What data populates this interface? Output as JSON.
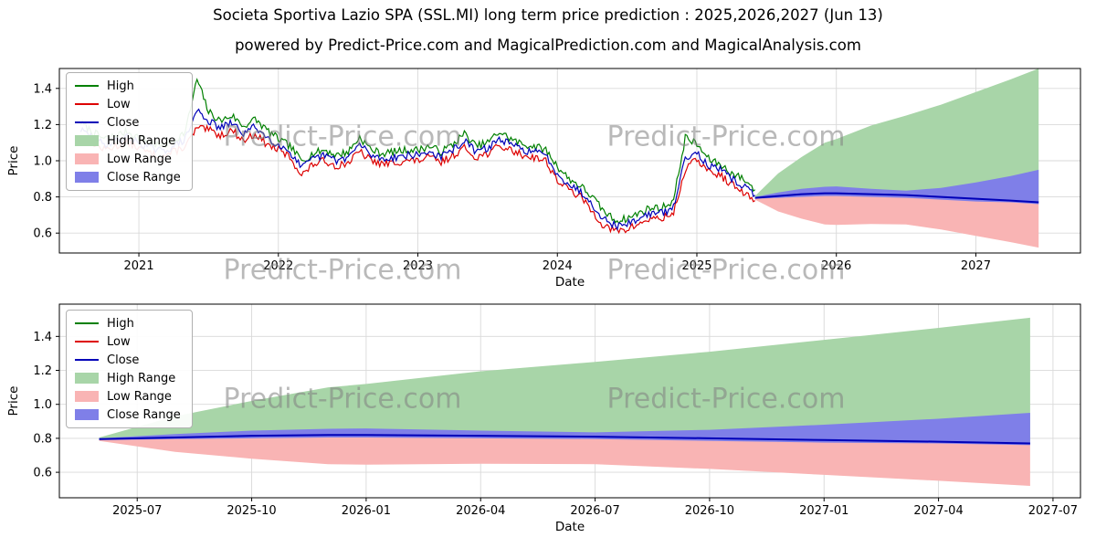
{
  "watermark": "Predict-Price.com",
  "colors": {
    "high": "#008000",
    "low": "#dd0000",
    "close": "#0000b8",
    "high_range": "#a8d5a8",
    "low_range": "#f9b4b4",
    "close_range": "#7f7fe8",
    "grid": "#d9d9d9",
    "frame": "#000000",
    "watermark": "#808080"
  },
  "legend": [
    {
      "label": "High",
      "swatch": "line",
      "color": "#008000",
      "name": "high-line-swatch"
    },
    {
      "label": "Low",
      "swatch": "line",
      "color": "#dd0000",
      "name": "low-line-swatch"
    },
    {
      "label": "Close",
      "swatch": "line",
      "color": "#0000b8",
      "name": "close-line-swatch"
    },
    {
      "label": "High Range",
      "swatch": "patch",
      "color": "#a8d5a8",
      "name": "high-range-swatch"
    },
    {
      "label": "Low Range",
      "swatch": "patch",
      "color": "#f9b4b4",
      "name": "low-range-swatch"
    },
    {
      "label": "Close Range",
      "swatch": "patch",
      "color": "#7f7fe8",
      "name": "close-range-swatch"
    }
  ],
  "forecast": {
    "t": [
      2025.417,
      2025.583,
      2025.75,
      2025.917,
      2026.0,
      2026.25,
      2026.5,
      2026.75,
      2027.0,
      2027.25,
      2027.45
    ],
    "close": [
      0.795,
      0.805,
      0.815,
      0.82,
      0.82,
      0.815,
      0.81,
      0.8,
      0.79,
      0.78,
      0.77
    ],
    "close_hi": [
      0.8,
      0.825,
      0.845,
      0.856,
      0.858,
      0.845,
      0.835,
      0.85,
      0.88,
      0.915,
      0.95
    ],
    "close_lo": [
      0.79,
      0.795,
      0.8,
      0.805,
      0.805,
      0.8,
      0.795,
      0.785,
      0.775,
      0.77,
      0.76
    ],
    "high_hi": [
      0.805,
      0.93,
      1.02,
      1.1,
      1.12,
      1.195,
      1.25,
      1.31,
      1.38,
      1.45,
      1.51
    ],
    "low_lo": [
      0.785,
      0.72,
      0.68,
      0.648,
      0.645,
      0.65,
      0.648,
      0.62,
      0.585,
      0.55,
      0.52
    ]
  },
  "chart_data": [
    {
      "type": "line",
      "title": "Societa Sportiva Lazio SPA (SSL.MI) long term price prediction : 2025,2026,2027 (Jun 13)",
      "subtitle": "powered by Predict-Price.com and MagicalPrediction.com and MagicalAnalysis.com",
      "xlabel": "Date",
      "ylabel": "Price",
      "xlim": [
        2020.43,
        2027.75
      ],
      "ylim": [
        0.49,
        1.51
      ],
      "grid": true,
      "legend_position": "upper-left",
      "series": [
        "High",
        "Low",
        "Close",
        "High Range",
        "Low Range",
        "Close Range"
      ],
      "xticks": [
        {
          "v": 2021,
          "label": "2021"
        },
        {
          "v": 2022,
          "label": "2022"
        },
        {
          "v": 2023,
          "label": "2023"
        },
        {
          "v": 2024,
          "label": "2024"
        },
        {
          "v": 2025,
          "label": "2025"
        },
        {
          "v": 2026,
          "label": "2026"
        },
        {
          "v": 2027,
          "label": "2027"
        }
      ],
      "yticks": [
        0.6,
        0.8,
        1.0,
        1.2,
        1.4
      ],
      "history": {
        "t": [
          2020.583,
          2020.667,
          2020.75,
          2020.833,
          2020.917,
          2021.0,
          2021.083,
          2021.167,
          2021.25,
          2021.333,
          2021.417,
          2021.5,
          2021.583,
          2021.667,
          2021.75,
          2021.833,
          2021.917,
          2022.0,
          2022.083,
          2022.167,
          2022.25,
          2022.333,
          2022.417,
          2022.5,
          2022.583,
          2022.667,
          2022.75,
          2022.833,
          2022.917,
          2023.0,
          2023.083,
          2023.167,
          2023.25,
          2023.333,
          2023.417,
          2023.5,
          2023.583,
          2023.667,
          2023.75,
          2023.833,
          2023.917,
          2024.0,
          2024.083,
          2024.167,
          2024.25,
          2024.333,
          2024.417,
          2024.5,
          2024.583,
          2024.667,
          2024.75,
          2024.833,
          2024.917,
          2025.0,
          2025.083,
          2025.167,
          2025.25,
          2025.333,
          2025.417
        ],
        "close": [
          1.17,
          1.13,
          1.09,
          1.11,
          1.13,
          1.1,
          1.07,
          1.05,
          1.08,
          1.12,
          1.28,
          1.22,
          1.18,
          1.21,
          1.15,
          1.19,
          1.13,
          1.09,
          1.05,
          0.96,
          1.01,
          1.03,
          1.0,
          1.02,
          1.09,
          1.03,
          1.01,
          1.02,
          1.03,
          1.03,
          1.05,
          1.02,
          1.06,
          1.11,
          1.05,
          1.07,
          1.12,
          1.09,
          1.06,
          1.05,
          1.03,
          0.93,
          0.87,
          0.83,
          0.76,
          0.68,
          0.64,
          0.65,
          0.68,
          0.71,
          0.71,
          0.74,
          1.02,
          1.05,
          0.97,
          0.95,
          0.9,
          0.86,
          0.81
        ],
        "high": [
          1.21,
          1.16,
          1.12,
          1.14,
          1.16,
          1.13,
          1.1,
          1.08,
          1.11,
          1.16,
          1.45,
          1.27,
          1.22,
          1.25,
          1.19,
          1.23,
          1.17,
          1.12,
          1.08,
          1.0,
          1.04,
          1.06,
          1.03,
          1.05,
          1.13,
          1.06,
          1.04,
          1.05,
          1.06,
          1.06,
          1.08,
          1.05,
          1.09,
          1.15,
          1.08,
          1.1,
          1.16,
          1.12,
          1.09,
          1.08,
          1.06,
          0.97,
          0.9,
          0.86,
          0.8,
          0.72,
          0.67,
          0.68,
          0.71,
          0.74,
          0.74,
          0.78,
          1.13,
          1.09,
          1.01,
          0.98,
          0.93,
          0.9,
          0.84
        ],
        "low": [
          1.13,
          1.1,
          1.06,
          1.08,
          1.1,
          1.07,
          1.04,
          1.02,
          1.05,
          1.08,
          1.18,
          1.17,
          1.14,
          1.17,
          1.11,
          1.15,
          1.09,
          1.06,
          1.02,
          0.92,
          0.98,
          1.0,
          0.97,
          0.99,
          1.05,
          1.0,
          0.98,
          0.99,
          1.0,
          1.0,
          1.02,
          0.99,
          1.03,
          1.07,
          1.02,
          1.04,
          1.08,
          1.06,
          1.03,
          1.02,
          1.0,
          0.89,
          0.84,
          0.8,
          0.72,
          0.64,
          0.61,
          0.62,
          0.65,
          0.68,
          0.68,
          0.71,
          0.95,
          1.01,
          0.94,
          0.92,
          0.87,
          0.82,
          0.78
        ]
      }
    },
    {
      "type": "line",
      "title": "",
      "xlabel": "Date",
      "ylabel": "Price",
      "xlim": [
        2025.33,
        2027.56
      ],
      "ylim": [
        0.45,
        1.59
      ],
      "grid": true,
      "legend_position": "upper-left",
      "series": [
        "High",
        "Low",
        "Close",
        "High Range",
        "Low Range",
        "Close Range"
      ],
      "xticks": [
        {
          "v": 2025.5,
          "label": "2025-07"
        },
        {
          "v": 2025.75,
          "label": "2025-10"
        },
        {
          "v": 2026.0,
          "label": "2026-01"
        },
        {
          "v": 2026.25,
          "label": "2026-04"
        },
        {
          "v": 2026.5,
          "label": "2026-07"
        },
        {
          "v": 2026.75,
          "label": "2026-10"
        },
        {
          "v": 2027.0,
          "label": "2027-01"
        },
        {
          "v": 2027.25,
          "label": "2027-04"
        },
        {
          "v": 2027.5,
          "label": "2027-07"
        }
      ],
      "yticks": [
        0.6,
        0.8,
        1.0,
        1.2,
        1.4
      ]
    }
  ]
}
